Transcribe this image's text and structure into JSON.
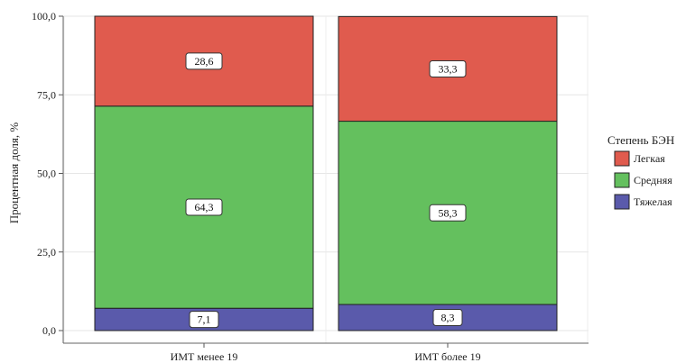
{
  "chart_data": {
    "type": "bar",
    "stacked": true,
    "categories": [
      "ИМТ менее 19",
      "ИМТ более 19"
    ],
    "series": [
      {
        "name": "Тяжелая",
        "values": [
          7.1,
          8.3
        ],
        "labels": [
          "7,1",
          "8,3"
        ],
        "color": "#5a5aab"
      },
      {
        "name": "Средняя",
        "values": [
          64.3,
          58.3
        ],
        "labels": [
          "64,3",
          "58,3"
        ],
        "color": "#64c05e"
      },
      {
        "name": "Легкая",
        "values": [
          28.6,
          33.3
        ],
        "labels": [
          "28,6",
          "33,3"
        ],
        "color": "#e05b4e"
      }
    ],
    "legend_title": "Степень БЭН",
    "legend_order": [
      "Легкая",
      "Средняя",
      "Тяжелая"
    ],
    "legend_position": "right",
    "ylabel": "Процентная доля, %",
    "xlabel": "",
    "ylim": [
      0,
      100
    ],
    "yticks": [
      0,
      25,
      50,
      75,
      100
    ],
    "ytick_labels": [
      "0,0",
      "25,0",
      "50,0",
      "75,0",
      "100,0"
    ],
    "grid": true
  }
}
